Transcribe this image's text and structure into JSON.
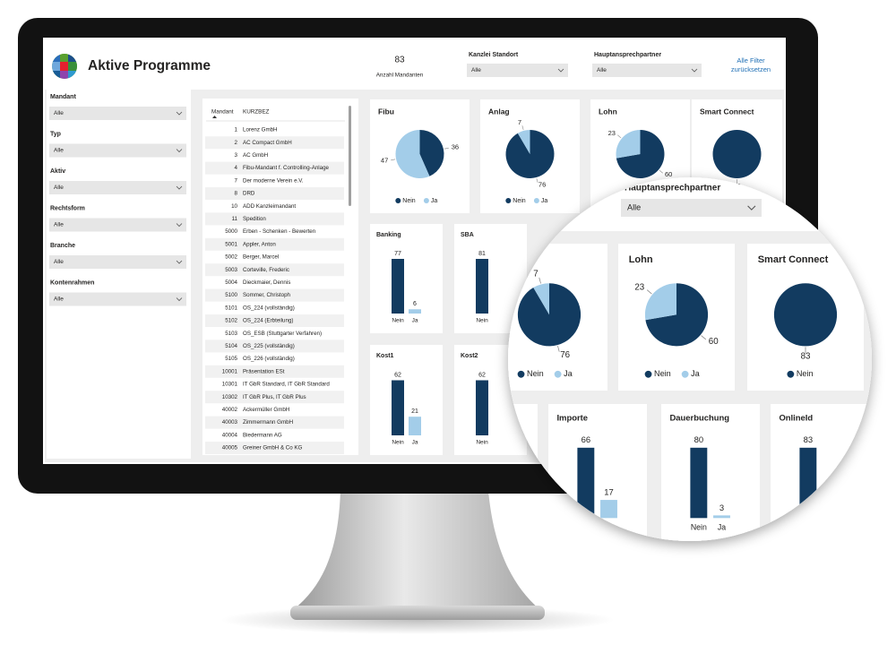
{
  "header": {
    "title": "Aktive Programme",
    "kpi": {
      "value": 83,
      "label": "Anzahl Mandanten"
    },
    "filters": [
      {
        "label": "Kanzlei Standort",
        "value": "Alle"
      },
      {
        "label": "Hauptansprechpartner",
        "value": "Alle"
      }
    ],
    "reset": "Alle Filter zurücksetzen"
  },
  "sidebar": {
    "filters": [
      {
        "label": "Mandant",
        "value": "Alle"
      },
      {
        "label": "Typ",
        "value": "Alle"
      },
      {
        "label": "Aktiv",
        "value": "Alle"
      },
      {
        "label": "Rechtsform",
        "value": "Alle"
      },
      {
        "label": "Branche",
        "value": "Alle"
      },
      {
        "label": "Kontenrahmen",
        "value": "Alle"
      }
    ]
  },
  "table": {
    "columns": [
      "Mandant",
      "KURZBEZ"
    ],
    "rows": [
      [
        1,
        "Lorenz GmbH"
      ],
      [
        2,
        "AC Compact GmbH"
      ],
      [
        3,
        "AC GmbH"
      ],
      [
        4,
        "Fibu-Mandant f. Controlling-Anlage"
      ],
      [
        7,
        "Der moderne Verein e.V."
      ],
      [
        8,
        "DRD"
      ],
      [
        10,
        "ADD Kanzleimandant"
      ],
      [
        11,
        "Spedition"
      ],
      [
        5000,
        "Erben - Schenken - Bewerten"
      ],
      [
        5001,
        "Appler, Anton"
      ],
      [
        5002,
        "Berger, Marcel"
      ],
      [
        5003,
        "Corteville, Frederic"
      ],
      [
        5004,
        "Dieckmaier, Dennis"
      ],
      [
        5100,
        "Sommer, Christoph"
      ],
      [
        5101,
        "OS_224 (vollständig)"
      ],
      [
        5102,
        "OS_224 (Erbteilung)"
      ],
      [
        5103,
        "OS_ESB (Stuttgarter Verfahren)"
      ],
      [
        5104,
        "OS_225 (vollständig)"
      ],
      [
        5105,
        "OS_226 (vollständig)"
      ],
      [
        10001,
        "Präsentation ESt"
      ],
      [
        10301,
        "IT GbR Standard, IT GbR Standard"
      ],
      [
        10302,
        "IT GbR Plus, IT GbR Plus"
      ],
      [
        40002,
        "Ackermüller GmbH"
      ],
      [
        40003,
        "Zimmermann GmbH"
      ],
      [
        40004,
        "Biedermann AG"
      ],
      [
        40005,
        "Greiner GmbH & Co KG"
      ]
    ]
  },
  "chart_data": [
    {
      "type": "pie",
      "title": "Fibu",
      "categories": [
        "Nein",
        "Ja"
      ],
      "values": [
        36,
        47
      ],
      "colors": [
        "#123b60",
        "#a3cde9"
      ]
    },
    {
      "type": "pie",
      "title": "Anlag",
      "categories": [
        "Nein",
        "Ja"
      ],
      "values": [
        76,
        7
      ],
      "colors": [
        "#123b60",
        "#a3cde9"
      ]
    },
    {
      "type": "pie",
      "title": "Lohn",
      "categories": [
        "Nein",
        "Ja"
      ],
      "values": [
        60,
        23
      ],
      "colors": [
        "#123b60",
        "#a3cde9"
      ]
    },
    {
      "type": "pie",
      "title": "Smart Connect",
      "categories": [
        "Nein"
      ],
      "values": [
        83
      ],
      "colors": [
        "#123b60"
      ]
    },
    {
      "type": "bar",
      "title": "Banking",
      "categories": [
        "Nein",
        "Ja"
      ],
      "values": [
        77,
        6
      ],
      "colors": [
        "#123b60",
        "#a3cde9"
      ]
    },
    {
      "type": "bar",
      "title": "SBA",
      "categories": [
        "Nein"
      ],
      "values": [
        81
      ],
      "colors": [
        "#123b60"
      ]
    },
    {
      "type": "bar",
      "title": "Kost1",
      "categories": [
        "Nein",
        "Ja"
      ],
      "values": [
        62,
        21
      ],
      "colors": [
        "#123b60",
        "#a3cde9"
      ]
    },
    {
      "type": "bar",
      "title": "Kost2",
      "categories": [
        "Nein"
      ],
      "values": [
        62
      ],
      "colors": [
        "#123b60"
      ]
    },
    {
      "type": "bar",
      "title": "Importe",
      "categories": [
        "Nein",
        "Ja"
      ],
      "values": [
        66,
        17
      ],
      "colors": [
        "#123b60",
        "#a3cde9"
      ]
    },
    {
      "type": "bar",
      "title": "Dauerbuchung",
      "categories": [
        "Nein",
        "Ja"
      ],
      "values": [
        80,
        3
      ],
      "colors": [
        "#123b60",
        "#a3cde9"
      ]
    },
    {
      "type": "bar",
      "title": "OnlineId",
      "categories": [
        null
      ],
      "values": [
        83
      ],
      "colors": [
        "#123b60"
      ]
    }
  ]
}
